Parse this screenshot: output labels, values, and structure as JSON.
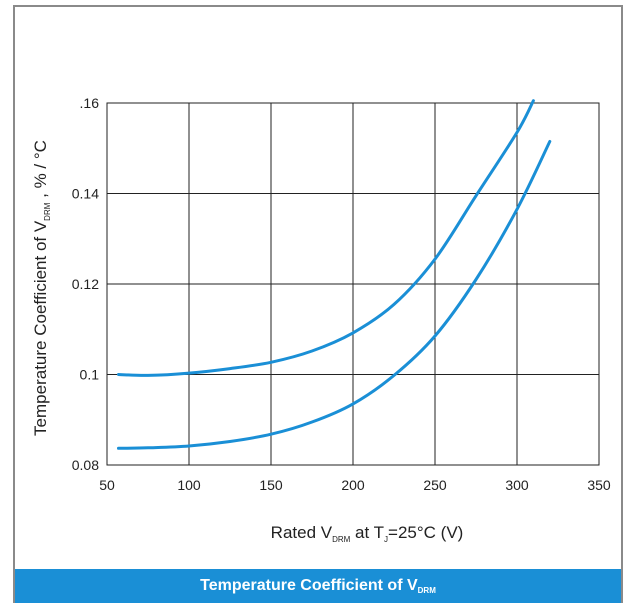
{
  "chart_data": {
    "type": "line",
    "title": "",
    "xlabel": {
      "pre": "Rated V",
      "sub1": "DRM",
      "mid": " at T",
      "sub2": "J",
      "post": "=25°C  (V)"
    },
    "ylabel": {
      "pre": "Temperature Coefficient of V",
      "sub": "DRM",
      "post": " , % / °C"
    },
    "xlim": [
      50,
      350
    ],
    "ylim": [
      0.08,
      0.16
    ],
    "x_ticks": [
      50,
      100,
      150,
      200,
      250,
      300,
      350
    ],
    "x_tick_labels": [
      "50",
      "100",
      "150",
      "200",
      "250",
      "300",
      "350"
    ],
    "y_ticks": [
      0.08,
      0.1,
      0.12,
      0.14,
      0.16
    ],
    "y_tick_labels": [
      "0.08",
      "0.1",
      "0.12",
      "0.14",
      ".16"
    ],
    "grid": true,
    "line_color": "#1a8fd6",
    "series": [
      {
        "x": [
          57,
          75,
          100,
          125,
          150,
          175,
          200,
          225,
          250,
          275,
          300,
          310
        ],
        "y": [
          0.1,
          0.0998,
          0.1003,
          0.1013,
          0.1027,
          0.1052,
          0.1092,
          0.1155,
          0.1255,
          0.1395,
          0.1535,
          0.1605
        ]
      },
      {
        "x": [
          57,
          75,
          100,
          125,
          150,
          175,
          200,
          225,
          250,
          275,
          300,
          320
        ],
        "y": [
          0.0837,
          0.0838,
          0.0842,
          0.0852,
          0.0868,
          0.0895,
          0.0935,
          0.0998,
          0.1085,
          0.121,
          0.1365,
          0.1515
        ]
      }
    ]
  },
  "banner": {
    "pre": "Temperature Coefficient of V",
    "sub": "DRM"
  }
}
